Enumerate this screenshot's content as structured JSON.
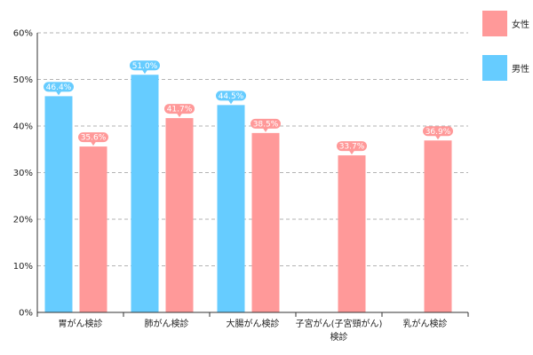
{
  "chart_data": {
    "type": "bar",
    "categories": [
      "胃がん検診",
      "肺がん検診",
      "大腸がん検診",
      "子宮がん(子宮頸がん)検診",
      "乳がん検診"
    ],
    "category_lines": [
      [
        "胃がん検診"
      ],
      [
        "肺がん検診"
      ],
      [
        "大腸がん検診"
      ],
      [
        "子宮がん(子宮頸がん)",
        "検診"
      ],
      [
        "乳がん検診"
      ]
    ],
    "series": [
      {
        "name": "男性",
        "color": "#66ccff",
        "values": [
          46.4,
          51.0,
          44.5,
          null,
          null
        ],
        "labels": [
          "46.4%",
          "51.0%",
          "44.5%",
          null,
          null
        ]
      },
      {
        "name": "女性",
        "color": "#ff9999",
        "values": [
          35.6,
          41.7,
          38.5,
          33.7,
          36.9
        ],
        "labels": [
          "35.6%",
          "41.7%",
          "38.5%",
          "33.7%",
          "36.9%"
        ]
      }
    ],
    "ylim": [
      0,
      60
    ],
    "yticks": [
      0,
      10,
      20,
      30,
      40,
      50,
      60
    ],
    "ytick_labels": [
      "0%",
      "10%",
      "20%",
      "30%",
      "40%",
      "50%",
      "60%"
    ],
    "grid": true,
    "legend_position": "top-right",
    "legend_order": [
      1,
      0
    ]
  }
}
